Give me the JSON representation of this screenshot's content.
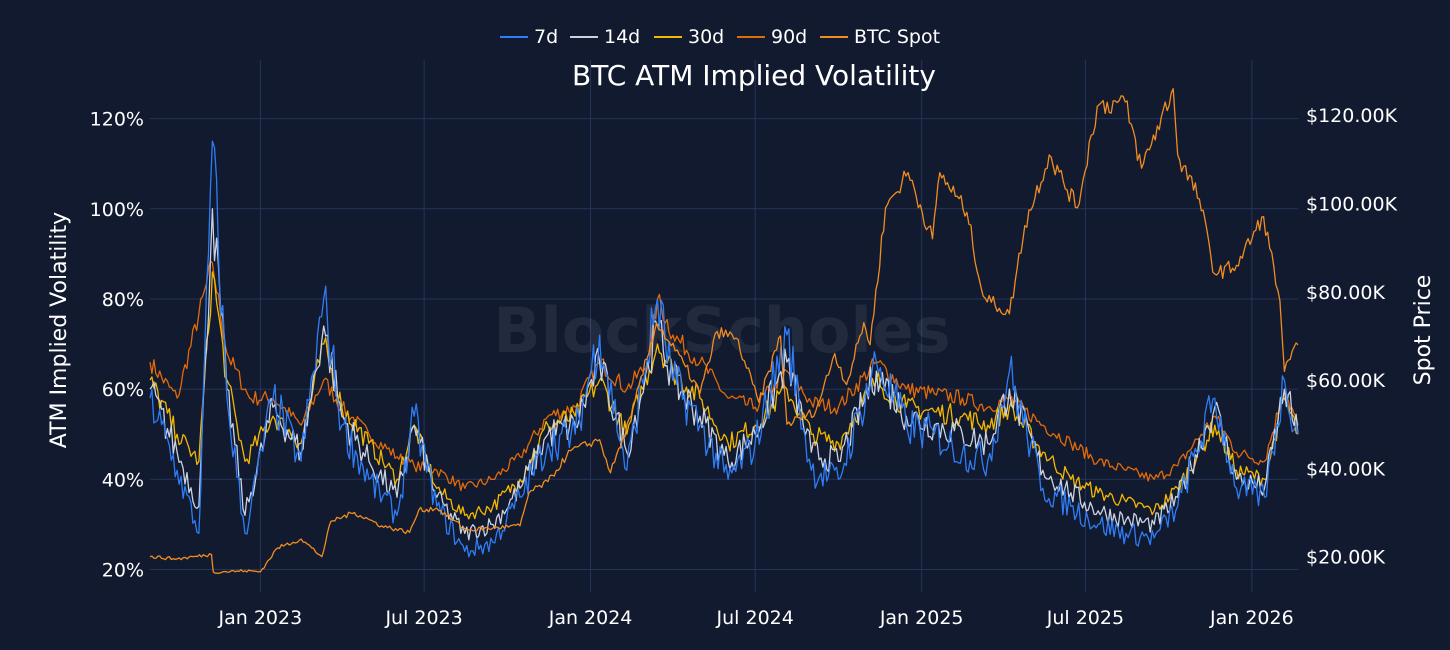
{
  "chart_data": {
    "type": "line",
    "title": "BTC ATM Implied Volatility",
    "watermark": "BlockScholes",
    "ylabel_left": "ATM Implied Volatility",
    "ylabel_right": "Spot Price",
    "x_range": [
      "2022-09-01",
      "2026-02-21"
    ],
    "x_ticks": [
      {
        "date": "2023-01-01",
        "label": "Jan 2023"
      },
      {
        "date": "2023-07-01",
        "label": "Jul 2023"
      },
      {
        "date": "2024-01-01",
        "label": "Jan 2024"
      },
      {
        "date": "2024-07-01",
        "label": "Jul 2024"
      },
      {
        "date": "2025-01-01",
        "label": "Jan 2025"
      },
      {
        "date": "2025-07-01",
        "label": "Jul 2025"
      },
      {
        "date": "2026-01-01",
        "label": "Jan 2026"
      }
    ],
    "y_left_range": [
      15,
      133
    ],
    "y_left_ticks": [
      {
        "value": 20,
        "label": "20%"
      },
      {
        "value": 40,
        "label": "40%"
      },
      {
        "value": 60,
        "label": "60%"
      },
      {
        "value": 80,
        "label": "80%"
      },
      {
        "value": 100,
        "label": "100%"
      },
      {
        "value": 120,
        "label": "120%"
      }
    ],
    "y_right_range": [
      12000,
      132500
    ],
    "y_right_ticks": [
      {
        "value": 20000,
        "label": "$20.00K"
      },
      {
        "value": 40000,
        "label": "$40.00K"
      },
      {
        "value": 60000,
        "label": "$60.00K"
      },
      {
        "value": 80000,
        "label": "$80.00K"
      },
      {
        "value": 100000,
        "label": "$100.00K"
      },
      {
        "value": 120000,
        "label": "$120.00K"
      }
    ],
    "legend": [
      {
        "name": "7d",
        "color": "#2f7df6"
      },
      {
        "name": "14d",
        "color": "#c9d3e3"
      },
      {
        "name": "30d",
        "color": "#f5b800"
      },
      {
        "name": "90d",
        "color": "#e36a09"
      },
      {
        "name": "BTC Spot",
        "color": "#f08c22"
      }
    ],
    "series": [
      {
        "name": "90d",
        "axis": "left",
        "color": "#e36a09",
        "points": [
          [
            "2022-09-01",
            66
          ],
          [
            "2022-10-01",
            58
          ],
          [
            "2022-11-09",
            88
          ],
          [
            "2022-11-25",
            68
          ],
          [
            "2022-12-20",
            58
          ],
          [
            "2023-01-15",
            58
          ],
          [
            "2023-02-15",
            52
          ],
          [
            "2023-03-12",
            62
          ],
          [
            "2023-04-01",
            56
          ],
          [
            "2023-05-01",
            50
          ],
          [
            "2023-06-01",
            45
          ],
          [
            "2023-06-20",
            43
          ],
          [
            "2023-07-15",
            42
          ],
          [
            "2023-08-15",
            38
          ],
          [
            "2023-09-15",
            40
          ],
          [
            "2023-10-15",
            45
          ],
          [
            "2023-11-15",
            54
          ],
          [
            "2023-12-15",
            56
          ],
          [
            "2024-01-11",
            66
          ],
          [
            "2024-02-10",
            60
          ],
          [
            "2024-03-05",
            66
          ],
          [
            "2024-03-15",
            80
          ],
          [
            "2024-04-01",
            72
          ],
          [
            "2024-05-01",
            66
          ],
          [
            "2024-06-01",
            58
          ],
          [
            "2024-07-01",
            56
          ],
          [
            "2024-08-05",
            64
          ],
          [
            "2024-09-01",
            57
          ],
          [
            "2024-10-01",
            56
          ],
          [
            "2024-11-12",
            66
          ],
          [
            "2024-12-15",
            60
          ],
          [
            "2025-01-15",
            59
          ],
          [
            "2025-02-15",
            58
          ],
          [
            "2025-03-15",
            56
          ],
          [
            "2025-04-08",
            58
          ],
          [
            "2025-05-15",
            52
          ],
          [
            "2025-06-15",
            48
          ],
          [
            "2025-07-15",
            44
          ],
          [
            "2025-08-15",
            42
          ],
          [
            "2025-09-15",
            40
          ],
          [
            "2025-10-11",
            43
          ],
          [
            "2025-11-21",
            54
          ],
          [
            "2025-12-15",
            46
          ],
          [
            "2026-01-15",
            44
          ],
          [
            "2026-02-06",
            60
          ],
          [
            "2026-02-21",
            52
          ]
        ]
      },
      {
        "name": "30d",
        "axis": "left",
        "color": "#f5b800",
        "points": [
          [
            "2022-09-01",
            62
          ],
          [
            "2022-10-01",
            50
          ],
          [
            "2022-10-25",
            44
          ],
          [
            "2022-11-09",
            86
          ],
          [
            "2022-11-25",
            62
          ],
          [
            "2022-12-15",
            44
          ],
          [
            "2023-01-15",
            54
          ],
          [
            "2023-02-15",
            48
          ],
          [
            "2023-03-12",
            70
          ],
          [
            "2023-04-01",
            56
          ],
          [
            "2023-05-01",
            48
          ],
          [
            "2023-06-01",
            40
          ],
          [
            "2023-06-20",
            52
          ],
          [
            "2023-07-15",
            38
          ],
          [
            "2023-08-15",
            32
          ],
          [
            "2023-09-15",
            34
          ],
          [
            "2023-10-15",
            40
          ],
          [
            "2023-11-15",
            52
          ],
          [
            "2023-12-15",
            54
          ],
          [
            "2024-01-11",
            62
          ],
          [
            "2024-02-10",
            50
          ],
          [
            "2024-03-15",
            70
          ],
          [
            "2024-04-01",
            64
          ],
          [
            "2024-05-01",
            58
          ],
          [
            "2024-06-01",
            48
          ],
          [
            "2024-07-01",
            52
          ],
          [
            "2024-08-05",
            60
          ],
          [
            "2024-09-01",
            50
          ],
          [
            "2024-10-01",
            48
          ],
          [
            "2024-11-12",
            62
          ],
          [
            "2024-12-15",
            56
          ],
          [
            "2025-01-15",
            55
          ],
          [
            "2025-02-15",
            54
          ],
          [
            "2025-03-15",
            52
          ],
          [
            "2025-04-08",
            56
          ],
          [
            "2025-05-15",
            46
          ],
          [
            "2025-06-15",
            40
          ],
          [
            "2025-07-15",
            37
          ],
          [
            "2025-08-15",
            35
          ],
          [
            "2025-09-15",
            33
          ],
          [
            "2025-10-11",
            38
          ],
          [
            "2025-11-21",
            52
          ],
          [
            "2025-12-15",
            42
          ],
          [
            "2026-01-15",
            40
          ],
          [
            "2026-02-06",
            58
          ],
          [
            "2026-02-21",
            50
          ]
        ]
      },
      {
        "name": "14d",
        "axis": "left",
        "color": "#c9d3e3",
        "points": [
          [
            "2022-09-01",
            60
          ],
          [
            "2022-10-01",
            46
          ],
          [
            "2022-10-25",
            34
          ],
          [
            "2022-11-09",
            100
          ],
          [
            "2022-11-25",
            60
          ],
          [
            "2022-12-15",
            32
          ],
          [
            "2023-01-15",
            56
          ],
          [
            "2023-02-15",
            46
          ],
          [
            "2023-03-12",
            74
          ],
          [
            "2023-04-01",
            54
          ],
          [
            "2023-05-01",
            44
          ],
          [
            "2023-06-01",
            36
          ],
          [
            "2023-06-20",
            52
          ],
          [
            "2023-07-15",
            36
          ],
          [
            "2023-08-15",
            28
          ],
          [
            "2023-09-15",
            30
          ],
          [
            "2023-10-15",
            38
          ],
          [
            "2023-11-15",
            50
          ],
          [
            "2023-12-15",
            52
          ],
          [
            "2024-01-11",
            66
          ],
          [
            "2024-02-10",
            46
          ],
          [
            "2024-03-15",
            74
          ],
          [
            "2024-04-01",
            62
          ],
          [
            "2024-05-01",
            54
          ],
          [
            "2024-06-01",
            44
          ],
          [
            "2024-07-01",
            50
          ],
          [
            "2024-08-05",
            66
          ],
          [
            "2024-09-01",
            46
          ],
          [
            "2024-10-01",
            44
          ],
          [
            "2024-11-12",
            64
          ],
          [
            "2024-12-15",
            54
          ],
          [
            "2025-01-15",
            52
          ],
          [
            "2025-02-15",
            50
          ],
          [
            "2025-03-15",
            48
          ],
          [
            "2025-04-08",
            60
          ],
          [
            "2025-05-15",
            42
          ],
          [
            "2025-06-15",
            37
          ],
          [
            "2025-07-15",
            33
          ],
          [
            "2025-08-15",
            31
          ],
          [
            "2025-09-15",
            30
          ],
          [
            "2025-10-11",
            36
          ],
          [
            "2025-11-21",
            56
          ],
          [
            "2025-12-15",
            40
          ],
          [
            "2026-01-15",
            38
          ],
          [
            "2026-02-06",
            60
          ],
          [
            "2026-02-21",
            50
          ]
        ]
      },
      {
        "name": "7d",
        "axis": "left",
        "color": "#2f7df6",
        "points": [
          [
            "2022-09-01",
            58
          ],
          [
            "2022-10-01",
            42
          ],
          [
            "2022-10-25",
            28
          ],
          [
            "2022-11-09",
            115
          ],
          [
            "2022-11-25",
            58
          ],
          [
            "2022-12-15",
            28
          ],
          [
            "2023-01-15",
            58
          ],
          [
            "2023-02-15",
            44
          ],
          [
            "2023-03-12",
            80
          ],
          [
            "2023-04-01",
            52
          ],
          [
            "2023-05-01",
            40
          ],
          [
            "2023-06-01",
            32
          ],
          [
            "2023-06-20",
            54
          ],
          [
            "2023-07-15",
            34
          ],
          [
            "2023-08-15",
            24
          ],
          [
            "2023-09-15",
            26
          ],
          [
            "2023-10-15",
            36
          ],
          [
            "2023-11-15",
            48
          ],
          [
            "2023-12-15",
            50
          ],
          [
            "2024-01-11",
            72
          ],
          [
            "2024-02-10",
            42
          ],
          [
            "2024-03-15",
            80
          ],
          [
            "2024-04-01",
            62
          ],
          [
            "2024-05-01",
            52
          ],
          [
            "2024-06-01",
            40
          ],
          [
            "2024-07-01",
            48
          ],
          [
            "2024-08-05",
            72
          ],
          [
            "2024-09-01",
            42
          ],
          [
            "2024-10-01",
            40
          ],
          [
            "2024-11-12",
            66
          ],
          [
            "2024-12-15",
            52
          ],
          [
            "2025-01-15",
            50
          ],
          [
            "2025-02-15",
            46
          ],
          [
            "2025-03-15",
            44
          ],
          [
            "2025-04-08",
            64
          ],
          [
            "2025-05-15",
            38
          ],
          [
            "2025-06-15",
            34
          ],
          [
            "2025-07-15",
            30
          ],
          [
            "2025-08-15",
            28
          ],
          [
            "2025-09-15",
            27
          ],
          [
            "2025-10-11",
            34
          ],
          [
            "2025-11-21",
            58
          ],
          [
            "2025-12-15",
            38
          ],
          [
            "2026-01-15",
            36
          ],
          [
            "2026-02-06",
            62
          ],
          [
            "2026-02-21",
            50
          ]
        ]
      },
      {
        "name": "BTC Spot",
        "axis": "right",
        "color": "#f08c22",
        "points": [
          [
            "2022-09-01",
            20000
          ],
          [
            "2022-10-01",
            19500
          ],
          [
            "2022-11-08",
            20500
          ],
          [
            "2022-11-10",
            16500
          ],
          [
            "2022-12-15",
            16800
          ],
          [
            "2023-01-01",
            16600
          ],
          [
            "2023-01-20",
            22000
          ],
          [
            "2023-02-15",
            24000
          ],
          [
            "2023-03-10",
            20000
          ],
          [
            "2023-03-20",
            28000
          ],
          [
            "2023-04-15",
            30000
          ],
          [
            "2023-05-15",
            27000
          ],
          [
            "2023-06-15",
            25500
          ],
          [
            "2023-06-25",
            30500
          ],
          [
            "2023-07-15",
            31000
          ],
          [
            "2023-08-17",
            26000
          ],
          [
            "2023-09-15",
            26500
          ],
          [
            "2023-10-15",
            27000
          ],
          [
            "2023-10-25",
            34500
          ],
          [
            "2023-11-15",
            37000
          ],
          [
            "2023-12-10",
            44000
          ],
          [
            "2024-01-11",
            46500
          ],
          [
            "2024-01-23",
            39000
          ],
          [
            "2024-02-15",
            52000
          ],
          [
            "2024-03-14",
            73000
          ],
          [
            "2024-04-15",
            63000
          ],
          [
            "2024-05-01",
            57000
          ],
          [
            "2024-05-20",
            71000
          ],
          [
            "2024-06-10",
            69500
          ],
          [
            "2024-07-05",
            55000
          ],
          [
            "2024-07-29",
            70000
          ],
          [
            "2024-08-05",
            50000
          ],
          [
            "2024-09-06",
            53000
          ],
          [
            "2024-09-27",
            66000
          ],
          [
            "2024-10-10",
            59000
          ],
          [
            "2024-10-29",
            73000
          ],
          [
            "2024-11-05",
            68000
          ],
          [
            "2024-11-22",
            99000
          ],
          [
            "2024-12-17",
            107000
          ],
          [
            "2025-01-13",
            92000
          ],
          [
            "2025-01-21",
            107000
          ],
          [
            "2025-02-20",
            98000
          ],
          [
            "2025-03-10",
            79000
          ],
          [
            "2025-04-08",
            75000
          ],
          [
            "2025-04-25",
            95000
          ],
          [
            "2025-05-22",
            111000
          ],
          [
            "2025-06-22",
            99000
          ],
          [
            "2025-07-14",
            122000
          ],
          [
            "2025-08-14",
            123000
          ],
          [
            "2025-09-01",
            108000
          ],
          [
            "2025-10-06",
            126000
          ],
          [
            "2025-10-11",
            111000
          ],
          [
            "2025-11-04",
            101000
          ],
          [
            "2025-11-21",
            84000
          ],
          [
            "2025-12-15",
            86000
          ],
          [
            "2026-01-14",
            97000
          ],
          [
            "2026-02-01",
            78000
          ],
          [
            "2026-02-06",
            62000
          ],
          [
            "2026-02-21",
            68000
          ]
        ]
      }
    ]
  }
}
